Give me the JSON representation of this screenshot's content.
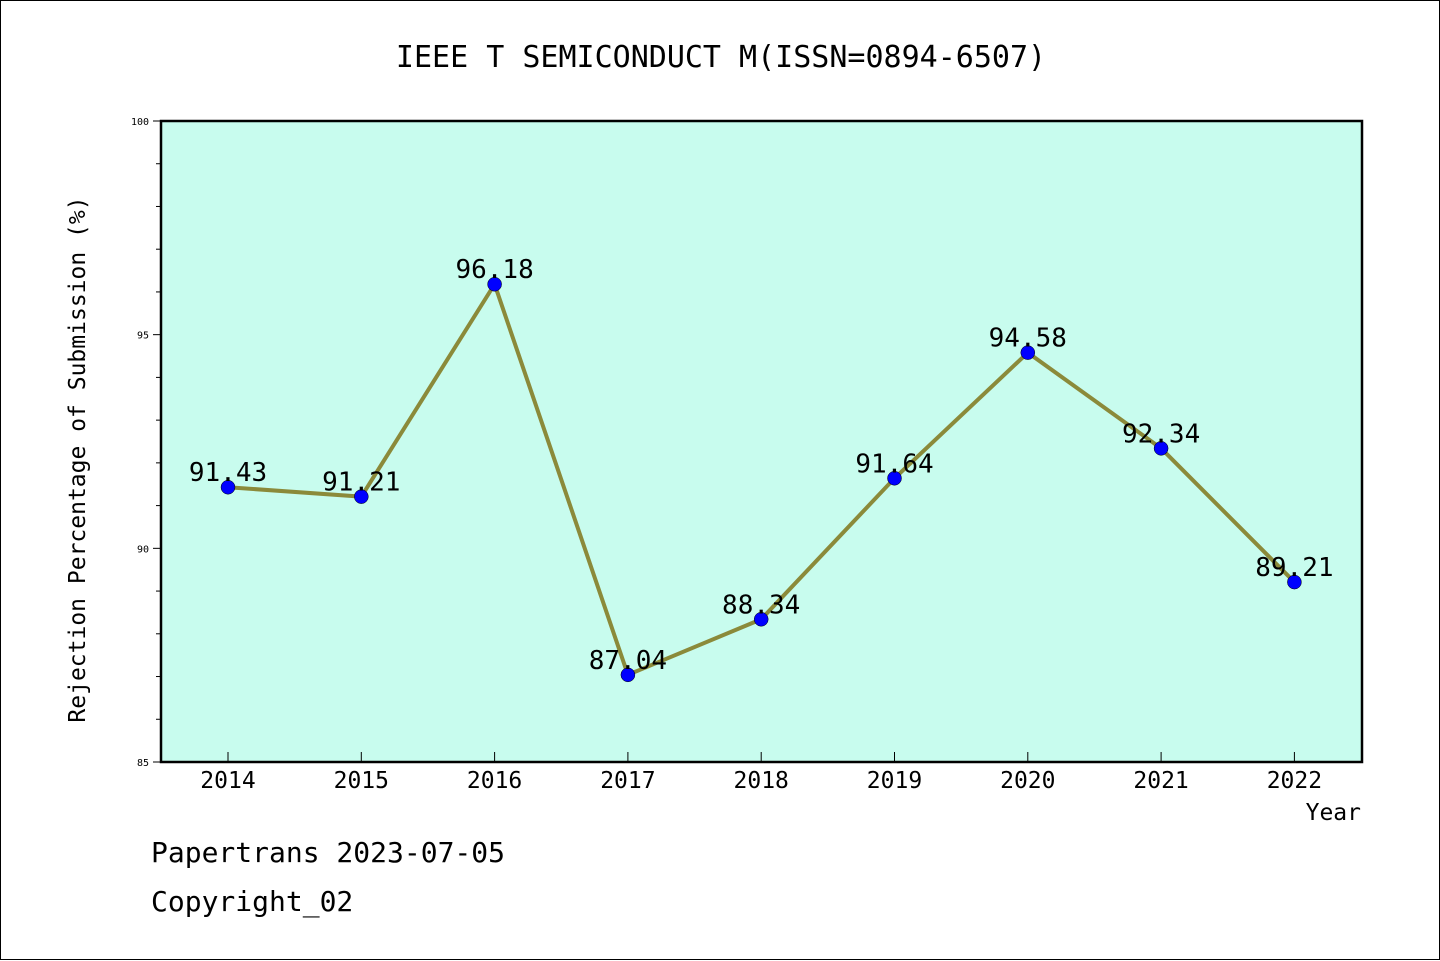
{
  "chart_data": {
    "type": "line",
    "title": "IEEE T SEMICONDUCT M(ISSN=0894-6507)",
    "xlabel": "Year",
    "ylabel": "Rejection Percentage of Submission (%)",
    "categories": [
      "2014",
      "2015",
      "2016",
      "2017",
      "2018",
      "2019",
      "2020",
      "2021",
      "2022"
    ],
    "values": [
      91.43,
      91.21,
      96.18,
      87.04,
      88.34,
      91.64,
      94.58,
      92.34,
      89.21
    ],
    "data_labels": [
      "91.43",
      "91.21",
      "96.18",
      "87.04",
      "88.34",
      "91.64",
      "94.58",
      "92.34",
      "89.21"
    ],
    "ylim": [
      85,
      100
    ],
    "yticks": [
      85,
      90,
      95,
      100
    ],
    "grid": false,
    "colors": {
      "plot_background": "#c8fcee",
      "line": "#8b8a3a",
      "marker": "#0000ff"
    }
  },
  "footer": {
    "line1": "Papertrans 2023-07-05",
    "line2": "Copyright_02"
  }
}
